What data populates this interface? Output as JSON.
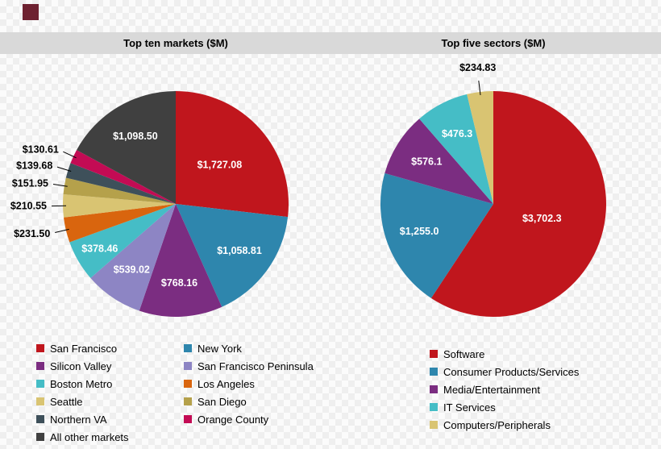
{
  "decor": {
    "corner_square_color": "#6e2130"
  },
  "header": {
    "left_title": "Top ten markets ($M)",
    "right_title": "Top five sectors ($M)"
  },
  "chart_data": [
    {
      "type": "pie",
      "title": "Top ten markets ($M)",
      "units": "$M",
      "legend_position": "bottom-left, two columns, row-wise",
      "start_angle_deg": 0,
      "direction": "clockwise",
      "categories": [
        "San Francisco",
        "New York",
        "Silicon Valley",
        "San Francisco Peninsula",
        "Boston Metro",
        "Los Angeles",
        "Seattle",
        "San Diego",
        "Northern VA",
        "Orange County",
        "All  other markets"
      ],
      "values": [
        1727.08,
        1058.81,
        768.16,
        539.02,
        378.46,
        231.5,
        210.55,
        151.95,
        139.68,
        130.61,
        1098.5
      ],
      "labels": [
        "$1,727.08",
        "$1,058.81",
        "$768.16",
        "$539.02",
        "$378.46",
        "$231.50",
        "$210.55",
        "$151.95",
        "$139.68",
        "$130.61",
        "$1,098.50"
      ],
      "colors": [
        "#c0161d",
        "#2e86ad",
        "#7b2d81",
        "#8d85c4",
        "#45bdc6",
        "#d9650e",
        "#d9c472",
        "#b5a14b",
        "#3e505a",
        "#c30b54",
        "#404040"
      ],
      "label_placement": [
        "inside",
        "inside",
        "inside",
        "inside",
        "inside",
        "outside",
        "outside",
        "outside",
        "outside",
        "outside",
        "inside"
      ]
    },
    {
      "type": "pie",
      "title": "Top five sectors ($M)",
      "units": "$M",
      "legend_position": "bottom, single column",
      "start_angle_deg": 0,
      "direction": "clockwise",
      "categories": [
        "Software",
        "Consumer Products/Services",
        "Media/Entertainment",
        "IT Services",
        "Computers/Peripherals"
      ],
      "values": [
        3702.3,
        1255.0,
        576.1,
        476.3,
        234.83
      ],
      "labels": [
        "$3,702.3",
        "$1,255.0",
        "$576.1",
        "$476.3",
        "$234.83"
      ],
      "colors": [
        "#c0161d",
        "#2e86ad",
        "#7b2d81",
        "#45bdc6",
        "#d9c472"
      ],
      "label_placement": [
        "inside",
        "inside",
        "inside",
        "inside",
        "outside"
      ]
    }
  ]
}
